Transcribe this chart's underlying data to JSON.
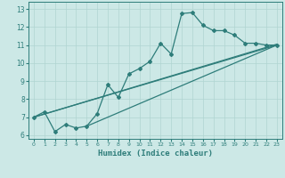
{
  "xlabel": "Humidex (Indice chaleur)",
  "bg_color": "#cce8e6",
  "line_color": "#2e7d7a",
  "grid_color": "#b0d4d1",
  "xlim": [
    -0.5,
    23.5
  ],
  "ylim": [
    5.8,
    13.4
  ],
  "xticks": [
    0,
    1,
    2,
    3,
    4,
    5,
    6,
    7,
    8,
    9,
    10,
    11,
    12,
    13,
    14,
    15,
    16,
    17,
    18,
    19,
    20,
    21,
    22,
    23
  ],
  "yticks": [
    6,
    7,
    8,
    9,
    10,
    11,
    12,
    13
  ],
  "line1_x": [
    0,
    1,
    2,
    3,
    4,
    5,
    6,
    7,
    8,
    9,
    10,
    11,
    12,
    13,
    14,
    15,
    16,
    17,
    18,
    19,
    20,
    21,
    22,
    23
  ],
  "line1_y": [
    7.0,
    7.3,
    6.2,
    6.6,
    6.4,
    6.5,
    7.2,
    8.8,
    8.1,
    9.4,
    9.7,
    10.1,
    11.1,
    10.5,
    12.75,
    12.8,
    12.1,
    11.8,
    11.8,
    11.55,
    11.1,
    11.1,
    11.0,
    11.0
  ],
  "line2_x": [
    0,
    23
  ],
  "line2_y": [
    7.0,
    11.0
  ],
  "line3_x": [
    0,
    23
  ],
  "line3_y": [
    7.0,
    11.05
  ],
  "line4_x": [
    5,
    23
  ],
  "line4_y": [
    6.5,
    11.0
  ]
}
